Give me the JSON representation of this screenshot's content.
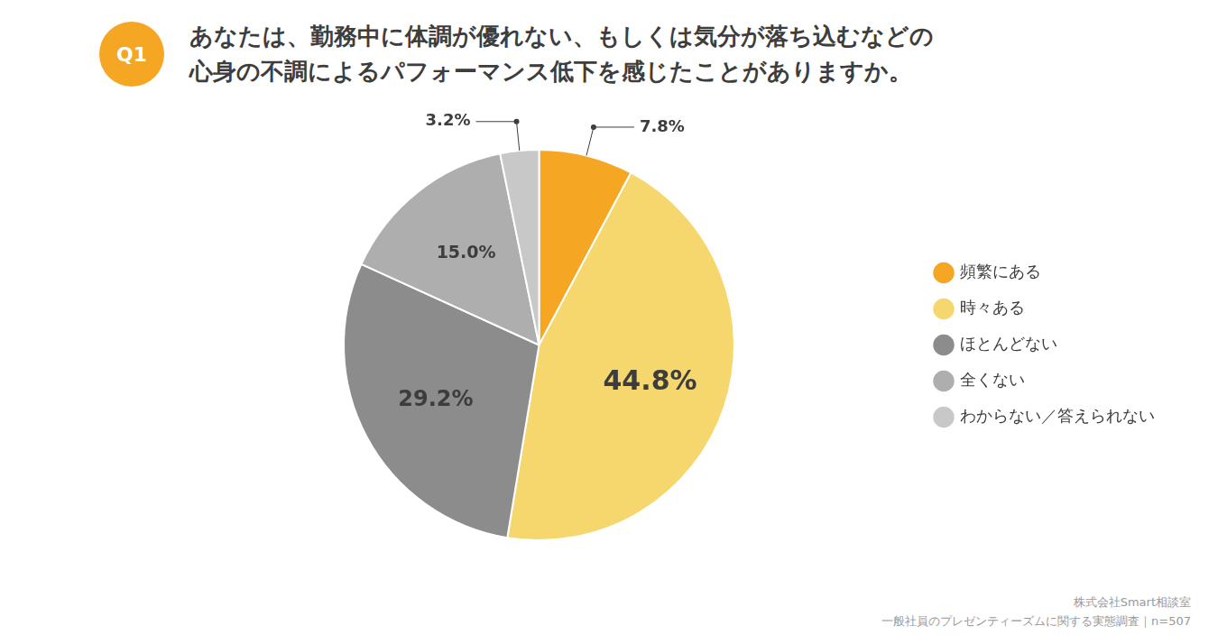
{
  "chart_data": {
    "type": "pie",
    "title": [
      "あなたは、勤務中に体調が優れない、もしくは気分が落ち込むなどの",
      "心身の不調によるパフォーマンス低下を感じたことがありますか。"
    ],
    "categories": [
      "頻繁にある",
      "時々ある",
      "ほとんどない",
      "全くない",
      "わからない／答えられない"
    ],
    "values": [
      7.8,
      44.8,
      29.2,
      15.0,
      3.2
    ],
    "value_labels": [
      "7.8%",
      "44.8%",
      "29.2%",
      "15.0%",
      "3.2%"
    ],
    "colors": [
      "#F5A623",
      "#F5D76E",
      "#8C8C8C",
      "#AEAEAE",
      "#C8C8C8"
    ],
    "data_labels": true,
    "legend": "right",
    "annotations": [
      "Q1",
      "株式会社Smart相談室",
      "一般社員のプレゼンティーズムに関する実態調査｜n=507"
    ]
  }
}
